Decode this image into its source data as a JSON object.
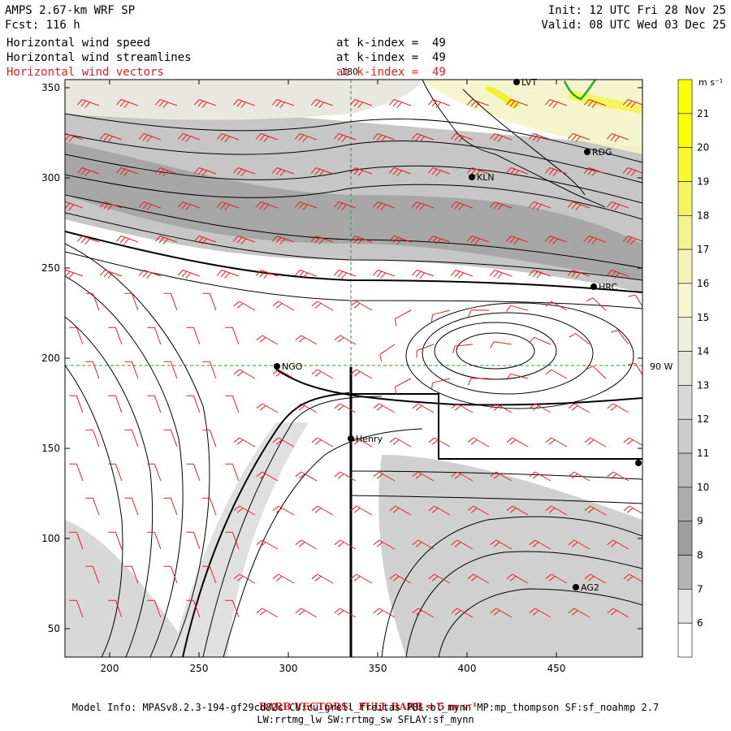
{
  "header": {
    "model": "AMPS 2.67-km WRF SP",
    "forecast": "Fcst: 116 h",
    "init": "Init: 12 UTC Fri 28 Nov 25",
    "valid": "Valid: 08 UTC Wed 03 Dec 25",
    "fields": [
      {
        "name": "Horizontal wind speed",
        "level": "at k-index =  49",
        "color": "#000000"
      },
      {
        "name": "Horizontal wind streamlines",
        "level": "at k-index =  49",
        "color": "#000000"
      },
      {
        "name": "Horizontal wind vectors",
        "level": "at k-index =  49",
        "color": "#e02020"
      }
    ]
  },
  "map": {
    "x_ticks": [
      "200",
      "250",
      "300",
      "350",
      "400",
      "450"
    ],
    "y_ticks": [
      "350",
      "300",
      "250",
      "200",
      "150",
      "100",
      "50"
    ],
    "grid_labels": {
      "meridian": "180",
      "parallel": "90 W"
    },
    "stations": [
      "LVT",
      "RDG",
      "KLN",
      "HRC",
      "NGO",
      "Henry",
      "AG2"
    ]
  },
  "colorbar": {
    "unit": "m s⁻¹",
    "labels": [
      "21",
      "20",
      "19",
      "18",
      "17",
      "16",
      "15",
      "14",
      "13",
      "12",
      "11",
      "10",
      "9",
      "8",
      "7",
      "6"
    ],
    "colors": [
      "#ffff00",
      "#ffff00",
      "#f8f830",
      "#f4f460",
      "#f2f290",
      "#f4f4b8",
      "#f6f6d2",
      "#f0f0dc",
      "#e6e6d6",
      "#d8d8d8",
      "#cccccc",
      "#bdbdbd",
      "#adadad",
      "#9e9e9e",
      "#b4b4b4",
      "#e6e6e6",
      "#ffffff"
    ]
  },
  "footer": {
    "barb_label": "BARB VECTORS:  FULL BARB = 5 m s⁻¹",
    "model_info_1": "Model Info: MPASv8.2.3-194-gf29cd82c CU:cu_grell_freitas PBL:bl_mynn MP:mp_thompson SF:sf_noahmp 2.7",
    "model_info_2": "LW:rrtmg_lw SW:rrtmg_sw SFLAY:sf_mynn"
  }
}
